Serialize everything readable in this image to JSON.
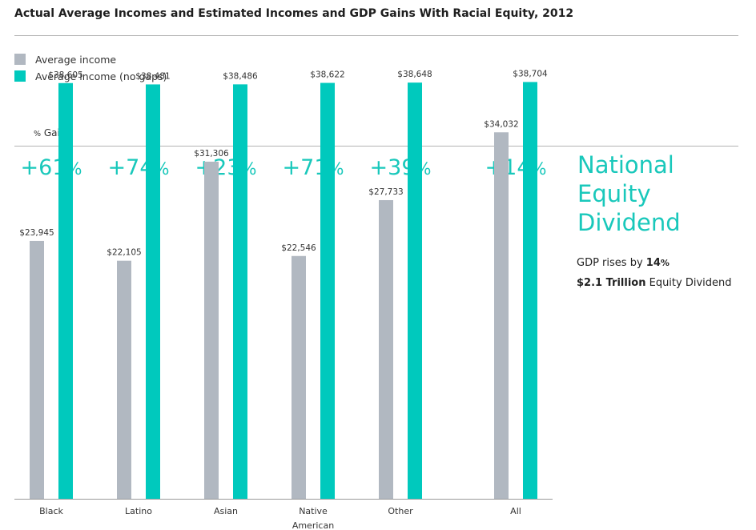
{
  "title": "Actual Average Incomes and Estimated Incomes and GDP Gains With Racial Equity, 2012",
  "legend": [
    {
      "label": "Average income",
      "color": "#b1b8c1"
    },
    {
      "label": "Average income (no gaps)",
      "color": "#00c9bd"
    }
  ],
  "gain_label": {
    "symbol": "%",
    "text": " Gain:"
  },
  "side_panel": {
    "title_lines": [
      "National",
      "Equity",
      "Dividend"
    ],
    "gdp_prefix": "GDP rises by ",
    "gdp_value": "14",
    "gdp_symbol": "%",
    "dividend_value": "$2.1 Trillion",
    "dividend_suffix": " Equity Dividend"
  },
  "chart_data": {
    "type": "bar",
    "title": "Actual Average Incomes and Estimated Incomes and GDP Gains With Racial Equity, 2012",
    "categories": [
      "Black",
      "Latino",
      "Asian",
      "Native American",
      "Other",
      "All"
    ],
    "category_lines": [
      [
        "Black"
      ],
      [
        "Latino"
      ],
      [
        "Asian"
      ],
      [
        "Native",
        "American"
      ],
      [
        "Other"
      ],
      [
        "All"
      ]
    ],
    "series": [
      {
        "name": "Average income",
        "color": "#b1b8c1",
        "values": [
          23945,
          22105,
          31306,
          22546,
          27733,
          34032
        ],
        "labels": [
          "$23,945",
          "$22,105",
          "$31,306",
          "$22,546",
          "$27,733",
          "$34,032"
        ]
      },
      {
        "name": "Average income (no gaps)",
        "color": "#00c9bd",
        "values": [
          38605,
          38481,
          38486,
          38622,
          38648,
          38704
        ],
        "labels": [
          "$38,605",
          "$38,481",
          "$38,486",
          "$38,622",
          "$38,648",
          "$38,704"
        ]
      }
    ],
    "gains": [
      "+61",
      "+74",
      "+23",
      "+71",
      "+39",
      "+14"
    ],
    "gain_symbol": "%",
    "ylim": [
      0,
      40000
    ],
    "grid": false,
    "legend_position": "top-left"
  }
}
